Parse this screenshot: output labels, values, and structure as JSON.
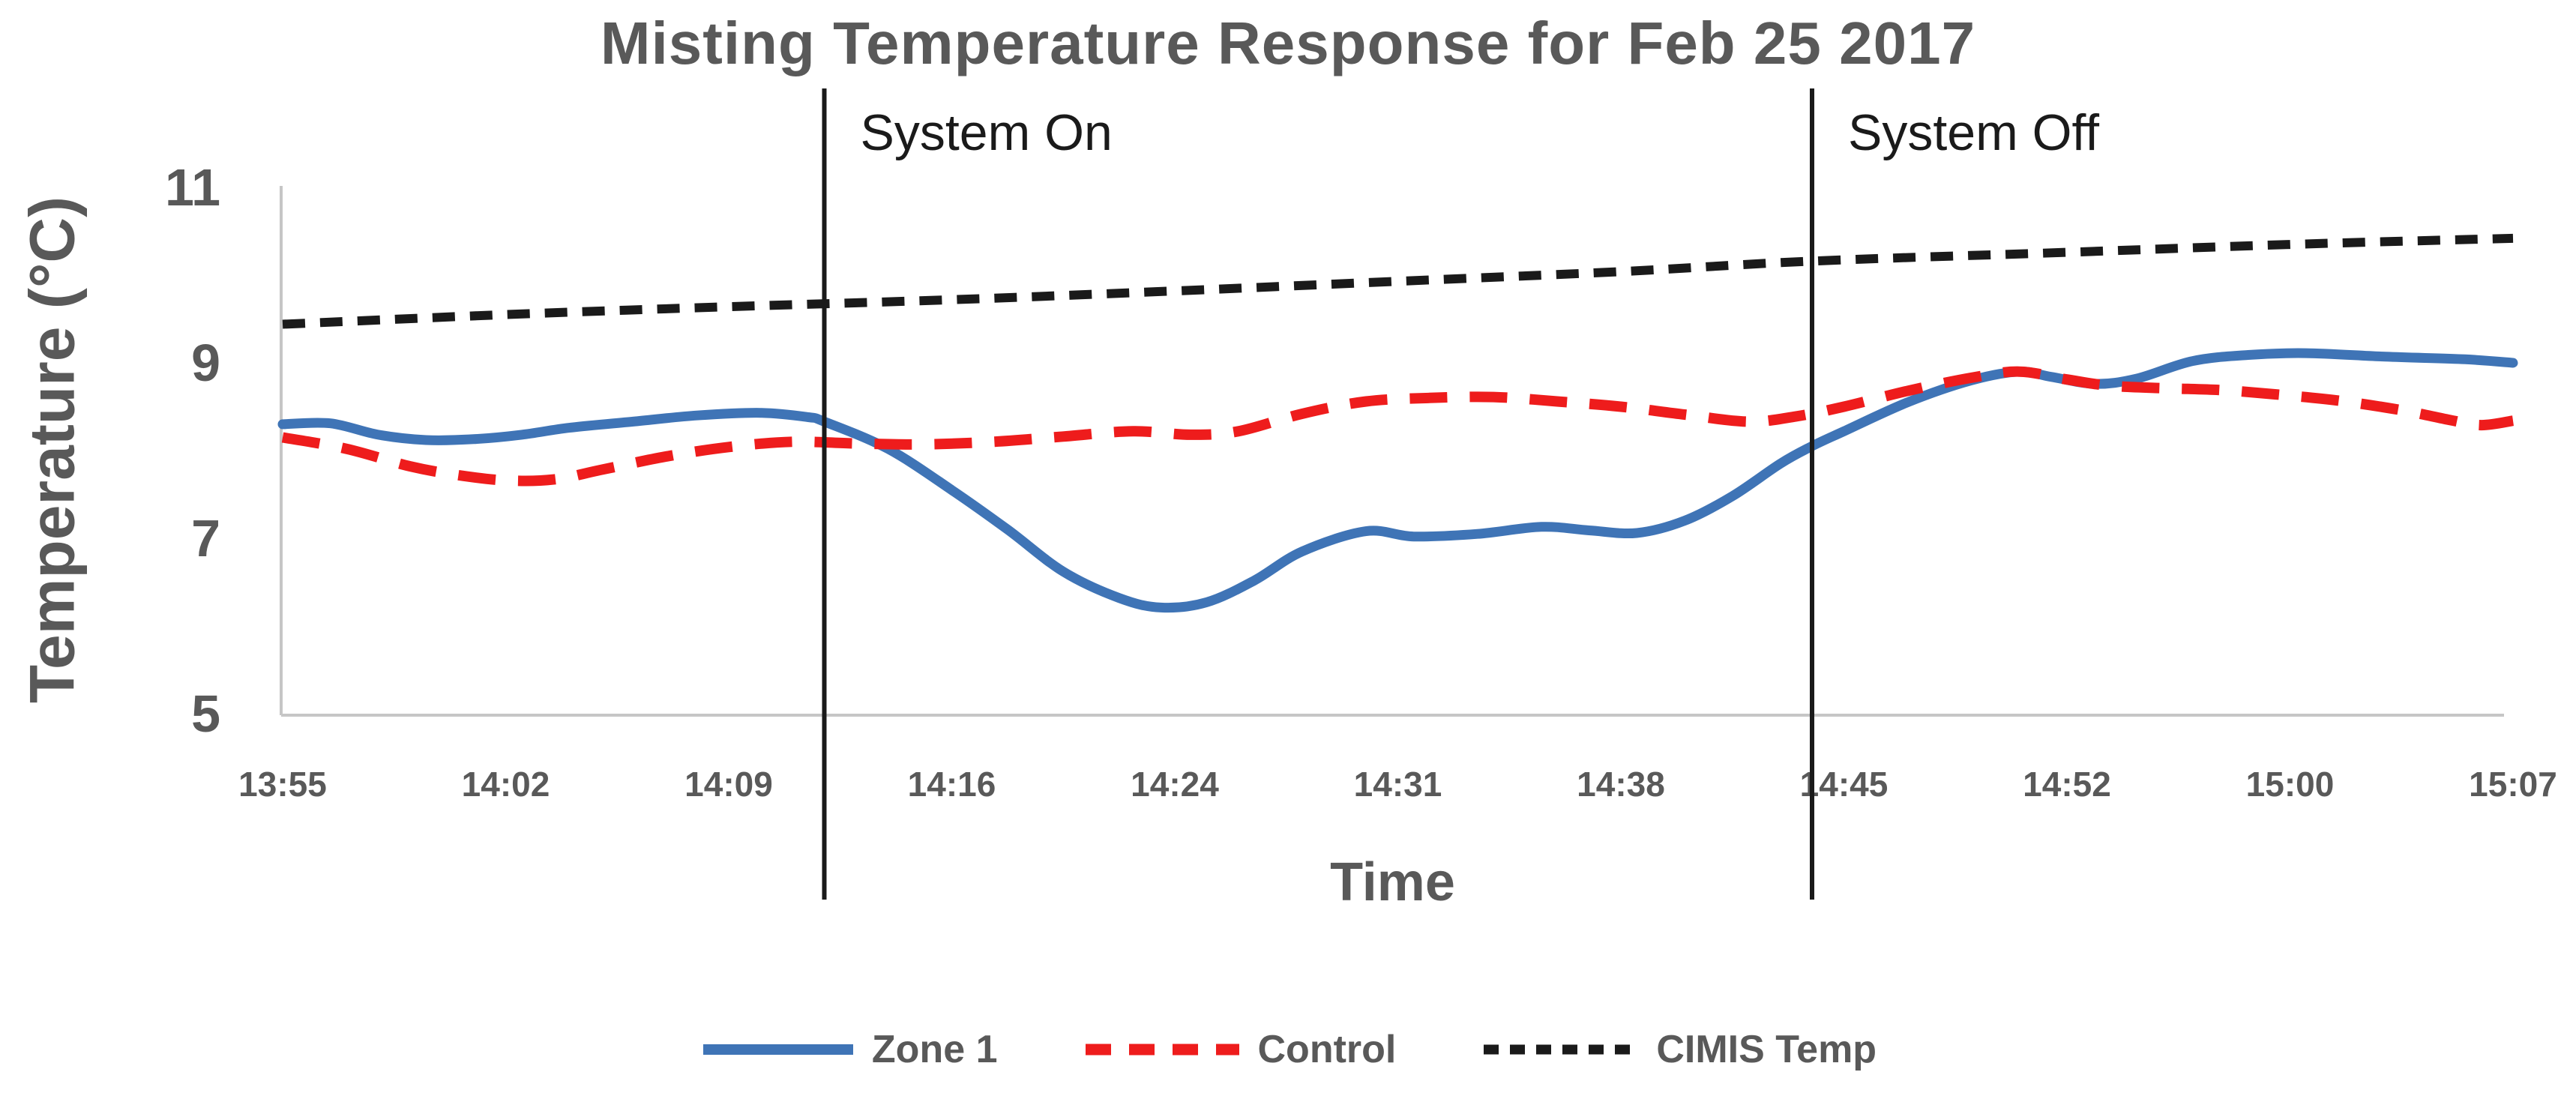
{
  "figure": {
    "background": "#ffffff",
    "text_color": "#595959",
    "axis_line_color": "#c6c6c6",
    "annotation_color": "#1a1a1a"
  },
  "chart_data": {
    "type": "line",
    "title": "Misting Temperature Response for Feb 25 2017",
    "xlabel": "Time",
    "ylabel": "Temperature (°C)",
    "ylim": [
      5,
      11
    ],
    "y_ticks": [
      11,
      9,
      7,
      5
    ],
    "grid": false,
    "legend_position": "bottom",
    "x_tick_labels": [
      "13:55",
      "14:02",
      "14:09",
      "14:16",
      "14:24",
      "14:31",
      "14:38",
      "14:45",
      "14:52",
      "15:00",
      "15:07"
    ],
    "x_tick_minutes": [
      0,
      7,
      14,
      21,
      29,
      36,
      43,
      50,
      57,
      65,
      72
    ],
    "x_origin_label": "13:55",
    "series": [
      {
        "name": "Zone 1",
        "color": "#3f74b6",
        "style": "solid",
        "points": [
          [
            0,
            8.3
          ],
          [
            1.5,
            8.31
          ],
          [
            3,
            8.18
          ],
          [
            4.5,
            8.12
          ],
          [
            6,
            8.13
          ],
          [
            7.5,
            8.18
          ],
          [
            9,
            8.26
          ],
          [
            11,
            8.33
          ],
          [
            13,
            8.4
          ],
          [
            15,
            8.43
          ],
          [
            16.5,
            8.38
          ],
          [
            17,
            8.33
          ],
          [
            19,
            8.02
          ],
          [
            21,
            7.55
          ],
          [
            23,
            7.1
          ],
          [
            25,
            6.62
          ],
          [
            27,
            6.32
          ],
          [
            28.5,
            6.21
          ],
          [
            30,
            6.27
          ],
          [
            31.5,
            6.52
          ],
          [
            33,
            6.85
          ],
          [
            35,
            7.08
          ],
          [
            36.5,
            7.02
          ],
          [
            38.5,
            7.05
          ],
          [
            40.5,
            7.13
          ],
          [
            42,
            7.09
          ],
          [
            43.5,
            7.06
          ],
          [
            45,
            7.2
          ],
          [
            46.5,
            7.48
          ],
          [
            48,
            7.85
          ],
          [
            49,
            8.05
          ],
          [
            50,
            8.22
          ],
          [
            52,
            8.55
          ],
          [
            54,
            8.8
          ],
          [
            55.5,
            8.9
          ],
          [
            56.5,
            8.84
          ],
          [
            58,
            8.76
          ],
          [
            59.5,
            8.82
          ],
          [
            61.5,
            9.02
          ],
          [
            63.5,
            9.09
          ],
          [
            65.5,
            9.11
          ],
          [
            68,
            9.07
          ],
          [
            70.5,
            9.04
          ],
          [
            72,
            9.0
          ]
        ]
      },
      {
        "name": "Control",
        "color": "#ee1c1c",
        "style": "long-dash",
        "points": [
          [
            0,
            8.15
          ],
          [
            2,
            8.02
          ],
          [
            4,
            7.82
          ],
          [
            5.5,
            7.72
          ],
          [
            7,
            7.66
          ],
          [
            8.5,
            7.67
          ],
          [
            10,
            7.78
          ],
          [
            12,
            7.93
          ],
          [
            14,
            8.04
          ],
          [
            16,
            8.1
          ],
          [
            18,
            8.08
          ],
          [
            20,
            8.07
          ],
          [
            22.5,
            8.1
          ],
          [
            25,
            8.16
          ],
          [
            27.5,
            8.22
          ],
          [
            29.5,
            8.18
          ],
          [
            31,
            8.22
          ],
          [
            33,
            8.42
          ],
          [
            35,
            8.56
          ],
          [
            37,
            8.6
          ],
          [
            39,
            8.61
          ],
          [
            41,
            8.56
          ],
          [
            43,
            8.5
          ],
          [
            45,
            8.41
          ],
          [
            47,
            8.33
          ],
          [
            48.5,
            8.39
          ],
          [
            50,
            8.5
          ],
          [
            52,
            8.68
          ],
          [
            54,
            8.83
          ],
          [
            55.5,
            8.9
          ],
          [
            57,
            8.81
          ],
          [
            58.5,
            8.74
          ],
          [
            60.5,
            8.71
          ],
          [
            62.5,
            8.69
          ],
          [
            64.5,
            8.64
          ],
          [
            66.5,
            8.57
          ],
          [
            68.5,
            8.46
          ],
          [
            70,
            8.35
          ],
          [
            71,
            8.29
          ],
          [
            72,
            8.34
          ]
        ]
      },
      {
        "name": "CIMIS Temp",
        "color": "#1a1a1a",
        "style": "short-dash",
        "points": [
          [
            0,
            9.44
          ],
          [
            7,
            9.55
          ],
          [
            14,
            9.64
          ],
          [
            21,
            9.72
          ],
          [
            29,
            9.82
          ],
          [
            36,
            9.93
          ],
          [
            43,
            10.04
          ],
          [
            49,
            10.16
          ],
          [
            57,
            10.26
          ],
          [
            65,
            10.35
          ],
          [
            72,
            10.42
          ]
        ]
      }
    ],
    "vlines": [
      {
        "label": "System On",
        "minute": 17
      },
      {
        "label": "System Off",
        "minute": 49
      }
    ]
  }
}
